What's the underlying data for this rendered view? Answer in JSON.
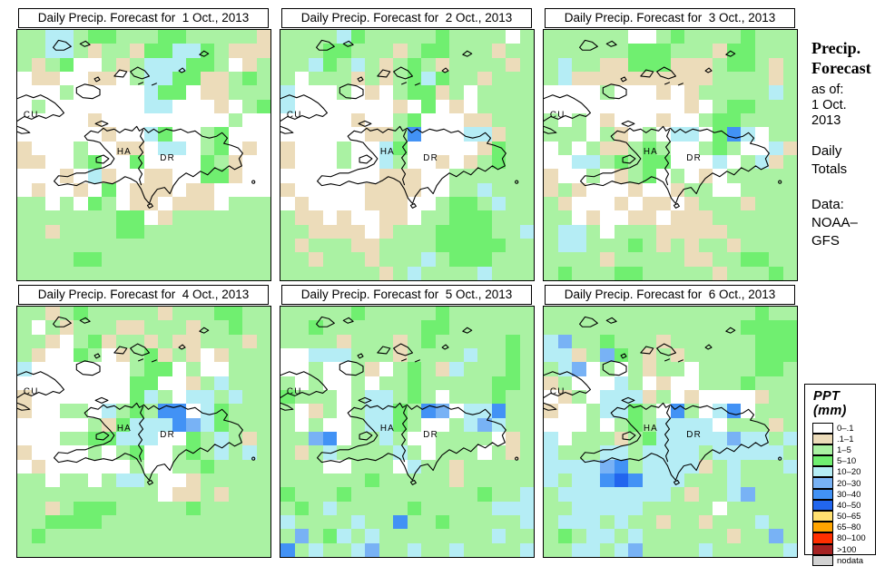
{
  "palette": {
    "W": "#ffffff",
    "T": "#ecdcba",
    "g": "#aaf2a3",
    "G": "#70ef70",
    "c": "#b5edf5",
    "b": "#78b2f5",
    "B": "#4292f5",
    "N": "#2266ee",
    "Y": "#ffe070",
    "O": "#ffa400",
    "R": "#ff2f00",
    "D": "#a52222",
    "X": "#d2d2d2"
  },
  "panels": [
    {
      "title": "Daily Precip. Forecast for  1 Oct., 2013",
      "grid": [
        "ggccgGGgggGGgggggT",
        "ggccgTggTGGccGgTTT",
        "gTgGWWgTgcccGGgWTg",
        "WTTWWTTWgccGGTTgGg",
        "WWWgWWWWWcGGWTTggg",
        "WgWWWWWWWccWWWTWgG",
        "WWWWWTWWWWWWWWWgWW",
        "WWWWWWTWWcGWWgGWWW",
        "TWWWgWWTTWccWgGWTW",
        "TTWWgGWWGWWWWGgTWW",
        "WWWTWcTWWTTWWGGTWW",
        "WTWWTWGWTTTWTTWWWW",
        "ggWgWGgWTTWTTTWggg",
        "gggggggGGWTggggggg",
        "ggTggggGGggggggggg",
        "gggggggggggggggggg",
        "ggggGGgggggggggggg",
        "gggggggggggggggggg"
      ]
    },
    {
      "title": "Daily Precip. Forecast for  2 Oct., 2013",
      "grid": [
        "ggggcGgggggGggggWg",
        "gggGGgggTgGGgggTgg",
        "ggcGgcgTgGgTggggTg",
        "gWgggTgTgGcGggTggg",
        "cWWWgWTWgGGTgWgggg",
        "cWWWWWWWTWGWTWgggg",
        "WWWWWTWWgGWWWTTggg",
        "WWWWWWTTgBWWWccTgg",
        "TWWWgWWcGWWWWWTGgg",
        "TWWWgWWcgWWTWTgGgg",
        "WWWWWWWTTTWWgggggg",
        "TWWWWWTTTTWWggcggg",
        "WTWWWWTTTWWgGGgcgg",
        "gTTWTWWTTWggGGGggg",
        "ggTTTTWTgggGGGGggc",
        "gTgggTTggggGGGGGgg",
        "ggTgggTgggcgGGGggg",
        "gggggggTgcggggcggg"
      ]
    },
    {
      "title": "Daily Precip. Forecast for  3 Oct., 2013",
      "grid": [
        "ggggggWWgGggggGggg",
        "ggggggGGGgggTGGggg",
        "gcggTTGGGTTTgGGgTg",
        "gcTTTTTTTTTTggggTg",
        "WWWWgWWWTWTgggggcg",
        "WWWWWWWWWWTWgGGggg",
        "gWgWTWWWTWWgGGgggg",
        "gggWgTWgWccWGBcWgg",
        "WgWgTTgGgWWgGgWWcT",
        "WWccgGgGGWWWcWgcTg",
        "TWWgWTgGWgWTWggggg",
        "TgTWWWTWWTggWWgggg",
        "gTWWWTWTTWTgggTggg",
        "ggWTWWTTWTTTgggggg",
        "gccgWgggTTTTTggggg",
        "gccgggGgTgTggTgggg",
        "ggggTgggggTTggGGgg",
        "gGgggGGgggggTgggGg"
      ]
    },
    {
      "title": "Daily Precip. Forecast for  4 Oct., 2013",
      "grid": [
        "ggTgGgggggTgggGGgg",
        "gWgTgggTTgggTggGgg",
        "ggTWgGTggTgTTgggTg",
        "gTWWGgWTgGTgTWTggg",
        "cWWWWWWWgGGWgWWggg",
        "WWWWWWWWGGWWTgcggg",
        "TWWWWWWWGcgWccgcgg",
        "TWWggWcgGgBBWcGggg",
        "WWWWWgTGcccBbcGggg",
        "WWWggGGcccWWGgcgTg",
        "TWWWWgWgGWWgGgcgcg",
        "WTWWWWWWgWWggGgggg",
        "ggWggWgccgWWTggggg",
        "ggggggggggWTTgTggg",
        "ggTgGGGgggggGggggg",
        "ggGGGGgggggggggggg",
        "gGgggggggggggggggg",
        "gggggggggggggggggg"
      ]
    },
    {
      "title": "Daily Precip. Forecast for  5 Oct., 2013",
      "grid": [
        "gggggGgggggGgggggg",
        "ggGgggggggGGgggggg",
        "ggggTgggTgGgggggGg",
        "WWcccgggTggggcggGg",
        "WWgWWgTWgGgTcgggGg",
        "gWgWWgWggGgggggGGg",
        "GgggWgccgGgWgggGgg",
        "gWTgWgccGgBbWccBgg",
        "gWgWWgccGgWWgcbcgg",
        "ggbBWggcgWWggggWTg",
        "gTgcggggcgWgggWgTg",
        "gggWWgggWcggTggggg",
        "ggggggGgggggTggggg",
        "GgggGgggggggggGggc",
        "gGgcgggggGgggggccc",
        "cggggcggBggGgggggc",
        "gbgGcgcggggggggcgg",
        "Bgcggcbggcggcggggc"
      ]
    },
    {
      "title": "Daily Precip. Forecast for  6 Oct., 2013",
      "grid": [
        "gggggggggggggggGgg",
        "ggggggggggggggGGGG",
        "cbggGgggTggggggGGG",
        "ccTgbGgTgTgggggGGG",
        "gcbWgWgTggWggggGGg",
        "TgWWWcgWTWWgggGggg",
        "WTgWcccTgWTWWWWTgg",
        "TWWgccGgWBgWcBWggg",
        "WWWgWgGgccccWgggTg",
        "cWgggTgGcccccbccgc",
        "cgggccgccccgcccccg",
        "ccccbBgccccTgcgggc",
        "cgccBNBcccgggcgggg",
        "gccccccccgTggcbggg",
        "ggcccccgggggWggggg",
        "gcccgcggTggTgggcgg",
        "gGgccgcggggggTggbg",
        "ggccgcbggggcgggggc"
      ]
    }
  ],
  "map_labels": {
    "cuba": "CU",
    "haiti": "HA",
    "dominican_republic": "DR"
  },
  "sidebar": {
    "title_line1": "Precip.",
    "title_line2": "Forecast",
    "as_of_label": "as of:",
    "as_of_date_line1": "1 Oct.",
    "as_of_date_line2": "2013",
    "totals_line1": "Daily",
    "totals_line2": "Totals",
    "data_label": "Data:",
    "data_source_line1": "NOAA–",
    "data_source_line2": "GFS"
  },
  "legend": {
    "title": "PPT (mm)",
    "entries": [
      {
        "label": "0–.1",
        "color": "#ffffff"
      },
      {
        "label": ".1–1",
        "color": "#ecdcba"
      },
      {
        "label": "1–5",
        "color": "#aaf2a3"
      },
      {
        "label": "5–10",
        "color": "#70ef70"
      },
      {
        "label": "10–20",
        "color": "#b5edf5"
      },
      {
        "label": "20–30",
        "color": "#78b2f5"
      },
      {
        "label": "30–40",
        "color": "#4292f5"
      },
      {
        "label": "40–50",
        "color": "#2266ee"
      },
      {
        "label": "50–65",
        "color": "#ffe070"
      },
      {
        "label": "65–80",
        "color": "#ffa400"
      },
      {
        "label": "80–100",
        "color": "#ff2f00"
      },
      {
        "label": ">100",
        "color": "#a52222"
      },
      {
        "label": "nodata",
        "color": "#d2d2d2"
      }
    ]
  }
}
